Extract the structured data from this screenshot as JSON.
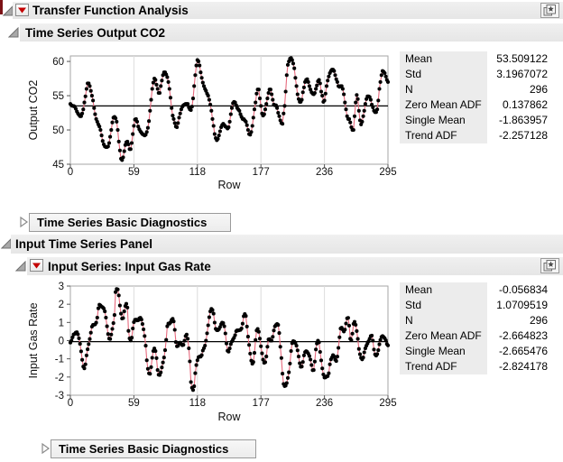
{
  "colors": {
    "series_line": "#e7697d",
    "marker": "#000000",
    "reference_line": "#000000",
    "plot_frame": "#a6a6a6",
    "gridline": "#dcdcdc",
    "header_bar_bg": "#ebebeb",
    "stats_label_bg": "#ececec",
    "red_triangle": "#c40000",
    "edge_strip": "#7c1216"
  },
  "icons": {
    "disclosure_open": "◢",
    "disclosure_closed": "▷",
    "red_triangle_menu": "▼",
    "panel_sticker": "★"
  },
  "headers": {
    "root": {
      "title": "Transfer Function Analysis"
    },
    "output_series": {
      "title": "Time Series Output CO2"
    },
    "diagnostics_top": {
      "title": "Time Series Basic Diagnostics"
    },
    "input_panel": {
      "title": "Input Time Series Panel"
    },
    "input_series": {
      "title": "Input Series: Input Gas Rate"
    },
    "diagnostics_bottom": {
      "title": "Time Series Basic Diagnostics"
    }
  },
  "stats_panels": [
    {
      "rows": [
        [
          "Mean",
          "53.509122"
        ],
        [
          "Std",
          "3.1967072"
        ],
        [
          "N",
          "296"
        ],
        [
          "Zero Mean ADF",
          "0.137862"
        ],
        [
          "Single Mean ADF",
          "-1.863957"
        ],
        [
          "Trend ADF",
          "-2.257128"
        ]
      ]
    },
    {
      "rows": [
        [
          "Mean",
          "-0.056834"
        ],
        [
          "Std",
          "1.0709519"
        ],
        [
          "N",
          "296"
        ],
        [
          "Zero Mean ADF",
          "-2.664823"
        ],
        [
          "Single Mean ADF",
          "-2.665476"
        ],
        [
          "Trend ADF",
          "-2.824178"
        ]
      ]
    }
  ],
  "chart_data": [
    {
      "type": "line",
      "title": "Time Series Output CO2",
      "ylabel": "Output CO2",
      "xlabel": "Row",
      "x_mode": "index",
      "xlim": [
        0,
        295
      ],
      "ylim": [
        45,
        60.8
      ],
      "x_ticks": [
        0,
        59,
        118,
        177,
        236,
        295
      ],
      "y_ticks": [
        45,
        50,
        55,
        60
      ],
      "reference_line": 53.509122,
      "grid": "vertical-only",
      "legend": "none",
      "y": [
        53.8,
        53.6,
        53.5,
        53.5,
        53.4,
        53.1,
        52.7,
        52.4,
        52.2,
        52.0,
        52.0,
        52.4,
        53.0,
        54.0,
        54.9,
        56.0,
        56.8,
        56.8,
        56.4,
        55.7,
        55.0,
        54.3,
        53.2,
        52.3,
        51.6,
        51.2,
        50.8,
        50.5,
        50.0,
        49.2,
        48.4,
        47.9,
        47.6,
        47.5,
        47.5,
        47.6,
        48.1,
        49.0,
        50.0,
        51.1,
        51.8,
        51.9,
        51.7,
        51.2,
        50.0,
        48.3,
        47.0,
        45.8,
        45.6,
        46.0,
        46.9,
        47.8,
        48.2,
        48.3,
        47.9,
        47.2,
        47.2,
        48.1,
        49.4,
        50.6,
        51.5,
        51.6,
        51.2,
        50.5,
        50.1,
        49.8,
        49.6,
        49.4,
        49.3,
        49.2,
        49.3,
        49.7,
        50.3,
        51.3,
        52.8,
        54.4,
        56.0,
        56.9,
        57.5,
        57.3,
        56.6,
        56.0,
        55.4,
        55.4,
        56.4,
        57.2,
        58.0,
        58.4,
        58.4,
        58.1,
        57.7,
        57.0,
        56.0,
        54.7,
        53.2,
        52.1,
        51.6,
        51.0,
        50.5,
        50.4,
        51.0,
        51.8,
        52.4,
        53.0,
        53.4,
        53.6,
        53.7,
        53.8,
        53.8,
        53.8,
        53.3,
        53.0,
        52.9,
        53.4,
        54.6,
        56.4,
        58.0,
        59.4,
        60.2,
        60.0,
        59.4,
        58.4,
        57.6,
        56.9,
        56.4,
        56.0,
        55.7,
        55.3,
        55.0,
        54.4,
        53.7,
        52.8,
        51.6,
        50.6,
        49.4,
        48.8,
        48.5,
        48.7,
        49.2,
        49.8,
        50.4,
        50.7,
        50.9,
        50.7,
        50.5,
        50.4,
        50.2,
        50.4,
        51.2,
        52.3,
        53.2,
        53.9,
        54.1,
        54.0,
        53.6,
        53.2,
        53.0,
        52.8,
        52.3,
        51.9,
        51.6,
        51.6,
        51.4,
        51.2,
        50.7,
        50.0,
        49.4,
        49.3,
        49.7,
        50.6,
        51.8,
        53.0,
        54.0,
        55.3,
        55.9,
        55.9,
        54.6,
        53.5,
        52.4,
        52.1,
        52.3,
        53.0,
        53.8,
        54.6,
        55.4,
        55.9,
        55.9,
        55.2,
        54.4,
        53.7,
        53.6,
        53.6,
        53.2,
        52.5,
        52.0,
        51.4,
        51.0,
        50.9,
        52.4,
        53.5,
        55.6,
        58.0,
        59.5,
        60.0,
        60.4,
        60.5,
        60.2,
        59.7,
        59.0,
        57.6,
        56.4,
        55.2,
        54.5,
        54.1,
        54.1,
        54.4,
        55.5,
        56.2,
        57.0,
        57.3,
        57.4,
        57.0,
        56.4,
        55.9,
        55.5,
        55.3,
        55.2,
        55.4,
        56.0,
        56.5,
        57.1,
        57.3,
        56.8,
        55.6,
        55.0,
        54.1,
        54.3,
        55.3,
        56.4,
        57.2,
        57.8,
        58.3,
        58.6,
        58.8,
        58.8,
        58.6,
        58.0,
        57.4,
        57.0,
        56.4,
        56.3,
        56.4,
        56.4,
        56.0,
        55.2,
        54.0,
        53.0,
        52.0,
        51.6,
        51.6,
        51.1,
        50.4,
        50.0,
        50.0,
        52.0,
        54.0,
        55.1,
        54.5,
        52.8,
        51.4,
        50.8,
        51.2,
        52.0,
        52.8,
        53.8,
        54.5,
        54.9,
        54.9,
        54.8,
        54.4,
        53.7,
        53.3,
        52.8,
        52.6,
        52.6,
        53.0,
        54.3,
        56.0,
        57.0,
        58.0,
        58.6,
        58.5,
        58.3,
        57.8,
        57.3,
        57.0
      ]
    },
    {
      "type": "line",
      "title": "Input Series: Input Gas Rate",
      "ylabel": "Input Gas Rate",
      "xlabel": "Row",
      "x_mode": "index",
      "xlim": [
        0,
        295
      ],
      "ylim": [
        -3,
        3
      ],
      "x_ticks": [
        0,
        59,
        118,
        177,
        236,
        295
      ],
      "y_ticks": [
        -3,
        -2,
        -1,
        0,
        1,
        2,
        3
      ],
      "reference_line": -0.056834,
      "grid": "vertical-only",
      "legend": "none",
      "y": [
        -0.109,
        0.0,
        0.178,
        0.339,
        0.373,
        0.441,
        0.461,
        0.348,
        0.127,
        -0.18,
        -0.588,
        -1.055,
        -1.421,
        -1.52,
        -1.302,
        -0.814,
        -0.475,
        -0.193,
        0.088,
        0.435,
        0.771,
        0.866,
        0.875,
        0.891,
        0.987,
        1.263,
        1.775,
        1.976,
        1.934,
        1.866,
        1.832,
        1.767,
        1.608,
        1.265,
        0.79,
        0.36,
        0.115,
        0.088,
        0.331,
        0.645,
        0.96,
        1.409,
        2.67,
        2.834,
        2.812,
        2.483,
        1.929,
        1.485,
        1.214,
        1.239,
        1.608,
        1.905,
        2.023,
        1.815,
        0.535,
        0.122,
        0.009,
        0.164,
        0.671,
        1.019,
        1.146,
        1.155,
        1.112,
        1.121,
        1.223,
        1.257,
        1.157,
        0.913,
        0.62,
        0.255,
        -0.28,
        -1.08,
        -1.551,
        -1.799,
        -1.825,
        -1.456,
        -0.944,
        -0.57,
        -0.431,
        -0.577,
        -0.96,
        -1.616,
        -1.875,
        -1.891,
        -1.746,
        -1.474,
        -1.201,
        -0.927,
        -0.524,
        0.04,
        0.788,
        0.943,
        0.93,
        1.006,
        1.137,
        1.198,
        1.054,
        0.595,
        -0.08,
        -0.314,
        -0.288,
        -0.153,
        -0.109,
        -0.187,
        -0.255,
        -0.229,
        -0.007,
        0.254,
        0.33,
        0.102,
        -0.423,
        -1.139,
        -2.275,
        -2.594,
        -2.716,
        -2.51,
        -1.79,
        -1.346,
        -1.081,
        -0.91,
        -0.876,
        -0.885,
        -0.8,
        -0.544,
        -0.416,
        -0.271,
        0.0,
        0.403,
        0.841,
        1.285,
        1.607,
        1.746,
        1.683,
        1.485,
        0.993,
        0.648,
        0.577,
        0.577,
        0.632,
        0.747,
        0.9,
        0.993,
        0.968,
        0.79,
        0.399,
        -0.161,
        -0.553,
        -0.603,
        -0.424,
        -0.194,
        -0.049,
        0.06,
        0.161,
        0.301,
        0.517,
        0.566,
        0.56,
        0.573,
        0.592,
        0.671,
        0.933,
        1.337,
        1.46,
        1.353,
        0.772,
        0.218,
        -0.237,
        -0.714,
        -1.099,
        -1.269,
        -1.175,
        -0.676,
        0.033,
        0.556,
        0.643,
        0.484,
        0.109,
        -0.31,
        -0.697,
        -1.047,
        -1.218,
        -1.183,
        -0.873,
        -0.336,
        0.063,
        0.084,
        0.0,
        0.001,
        0.209,
        0.556,
        0.782,
        0.858,
        0.918,
        0.862,
        0.416,
        -0.336,
        -0.959,
        -1.813,
        -2.378,
        -2.499,
        -2.473,
        -2.33,
        -2.053,
        -1.739,
        -1.261,
        -0.569,
        -0.137,
        -0.024,
        -0.05,
        -0.135,
        -0.276,
        -0.534,
        -0.871,
        -1.243,
        -1.439,
        -1.422,
        -1.175,
        -0.813,
        -0.634,
        -0.582,
        -0.625,
        -0.713,
        -0.848,
        -1.039,
        -1.346,
        -1.628,
        -1.619,
        -1.149,
        -0.488,
        -0.16,
        -0.007,
        -0.092,
        -0.62,
        -1.086,
        -1.525,
        -1.858,
        -2.029,
        -2.024,
        -1.961,
        -1.952,
        -1.794,
        -1.302,
        -1.03,
        -0.918,
        -0.798,
        -0.867,
        -1.047,
        -1.123,
        -0.876,
        -0.395,
        0.185,
        0.662,
        0.709,
        0.605,
        0.501,
        0.603,
        0.943,
        1.223,
        1.249,
        0.824,
        0.102,
        0.025,
        0.382,
        0.922,
        1.032,
        0.866,
        0.527,
        0.093,
        -0.458,
        -0.748,
        -0.947,
        -1.029,
        -0.928,
        -0.645,
        -0.424,
        -0.276,
        -0.158,
        -0.033,
        0.102,
        0.251,
        0.28,
        0.0,
        -0.493,
        -0.759,
        -0.824,
        -0.74,
        -0.528,
        -0.204,
        0.034,
        0.204,
        0.253,
        0.195,
        0.131,
        0.017,
        -0.182,
        -0.262
      ]
    }
  ]
}
